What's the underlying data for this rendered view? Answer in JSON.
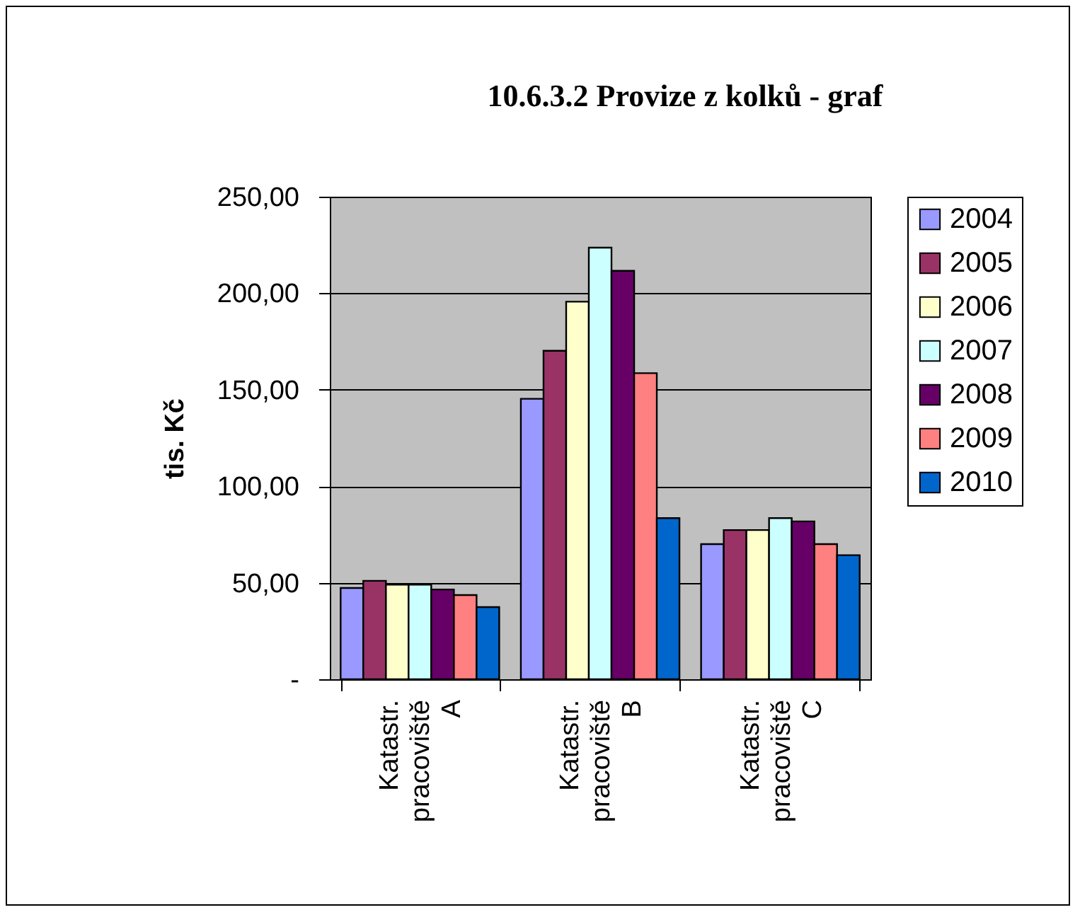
{
  "chart_data": {
    "type": "bar",
    "title": "10.6.3.2 Provize z kolků - graf",
    "ylabel": "tis. Kč",
    "categories": [
      "Katastr. pracoviště A",
      "Katastr. pracoviště B",
      "Katastr. pracoviště C"
    ],
    "series": [
      {
        "name": "2004",
        "color": "#9999ff",
        "values": [
          47.3,
          145.3,
          70
        ]
      },
      {
        "name": "2005",
        "color": "#993366",
        "values": [
          51,
          170.2,
          77.3
        ]
      },
      {
        "name": "2006",
        "color": "#ffffcc",
        "values": [
          49,
          195.6,
          77.3
        ]
      },
      {
        "name": "2007",
        "color": "#ccffff",
        "values": [
          49,
          223.6,
          83.5
        ]
      },
      {
        "name": "2008",
        "color": "#660066",
        "values": [
          46.5,
          211.6,
          81.8
        ]
      },
      {
        "name": "2009",
        "color": "#ff8080",
        "values": [
          43.6,
          158.6,
          70
        ]
      },
      {
        "name": "2010",
        "color": "#0066cc",
        "values": [
          37.4,
          83.5,
          64.3
        ]
      }
    ],
    "ylim": [
      0,
      250
    ],
    "yticks": [
      {
        "value": 0,
        "label": "-"
      },
      {
        "value": 50,
        "label": "50,00"
      },
      {
        "value": 100,
        "label": "100,00"
      },
      {
        "value": 150,
        "label": "150,00"
      },
      {
        "value": 200,
        "label": "200,00"
      },
      {
        "value": 250,
        "label": "250,00"
      }
    ],
    "grid": "y",
    "legend": "right"
  }
}
